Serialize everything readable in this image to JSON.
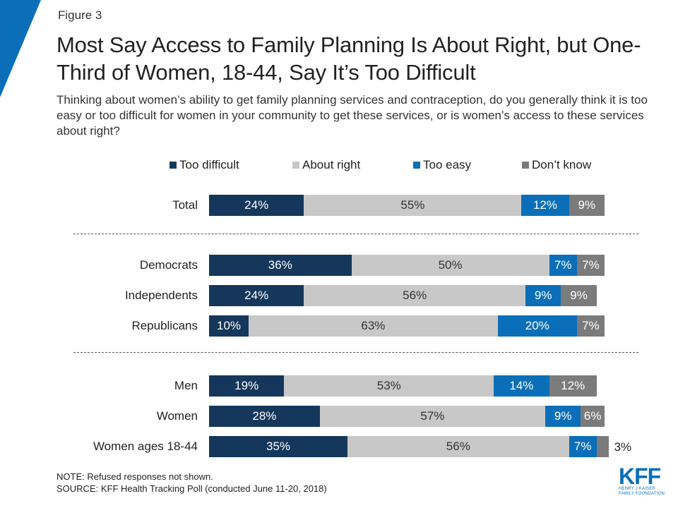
{
  "figure_label": "Figure 3",
  "title": "Most Say Access to Family Planning Is About Right, but One-Third of Women, 18-44, Say It’s Too Difficult",
  "subtitle": "Thinking about women’s ability to get family planning services and contraception, do you generally think it is too easy or too difficult for women in your community to get these services, or is women’s access to these services about right?",
  "colors": {
    "too_difficult": "#14375b",
    "about_right": "#c8c8c8",
    "too_easy": "#0a6fb8",
    "dont_know": "#7b7b7b",
    "corner_accent": "#0a6fb8"
  },
  "chart_data": {
    "type": "bar",
    "orientation": "horizontal-stacked",
    "xlim": [
      0,
      100
    ],
    "legend_position": "top",
    "series_names": [
      "Too difficult",
      "About right",
      "Too easy",
      "Don’t know"
    ],
    "groups": [
      {
        "rows": [
          {
            "label": "Total",
            "values": [
              24,
              55,
              12,
              9
            ],
            "labels": [
              "24%",
              "55%",
              "12%",
              "9%"
            ]
          }
        ]
      },
      {
        "rows": [
          {
            "label": "Democrats",
            "values": [
              36,
              50,
              7,
              7
            ],
            "labels": [
              "36%",
              "50%",
              "7%",
              "7%"
            ]
          },
          {
            "label": "Independents",
            "values": [
              24,
              56,
              9,
              9
            ],
            "labels": [
              "24%",
              "56%",
              "9%",
              "9%"
            ]
          },
          {
            "label": "Republicans",
            "values": [
              10,
              63,
              20,
              7
            ],
            "labels": [
              "10%",
              "63%",
              "20%",
              "7%"
            ]
          }
        ]
      },
      {
        "rows": [
          {
            "label": "Men",
            "values": [
              19,
              53,
              14,
              12
            ],
            "labels": [
              "19%",
              "53%",
              "14%",
              "12%"
            ]
          },
          {
            "label": "Women",
            "values": [
              28,
              57,
              9,
              6
            ],
            "labels": [
              "28%",
              "57%",
              "9%",
              "6%"
            ]
          },
          {
            "label": "Women ages 18-44",
            "values": [
              35,
              56,
              7,
              3
            ],
            "labels": [
              "35%",
              "56%",
              "7%",
              "3%"
            ]
          }
        ]
      }
    ]
  },
  "note": "NOTE: Refused responses not shown.",
  "source": "SOURCE: KFF Health Tracking Poll (conducted June 11-20, 2018)",
  "logo": {
    "mark": "KFF",
    "line1": "HENRY J KAISER",
    "line2": "FAMILY FOUNDATION"
  }
}
